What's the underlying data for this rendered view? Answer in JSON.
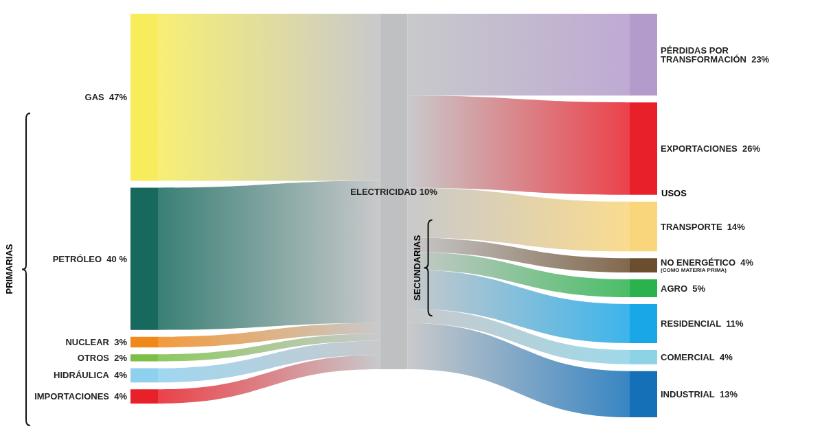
{
  "chart_data": {
    "type": "other",
    "categories": [
      "GAS",
      "PETRÓLEO",
      "NUCLEAR",
      "OTROS",
      "HIDRÁULICA",
      "IMPORTACIONES",
      "PÉRDIDAS POR TRANSFORMACIÓN",
      "EXPORTACIONES",
      "TRANSPORTE",
      "NO ENERGÉTICO",
      "AGRO",
      "RESIDENCIAL",
      "COMERCIAL",
      "INDUSTRIAL"
    ],
    "series": [
      {
        "name": "PRIMARIAS",
        "values": [
          47,
          40,
          3,
          2,
          4,
          4,
          null,
          null,
          null,
          null,
          null,
          null,
          null,
          null
        ],
        "value_labels": [
          "47%",
          "40 %",
          "3%",
          "2%",
          "4%",
          "4%",
          null,
          null,
          null,
          null,
          null,
          null,
          null,
          null
        ]
      },
      {
        "values": [
          null,
          null,
          null,
          null,
          null,
          null,
          23,
          26,
          null,
          null,
          null,
          null,
          null,
          null
        ],
        "value_labels": [
          null,
          null,
          null,
          null,
          null,
          null,
          "23%",
          "26%",
          null,
          null,
          null,
          null,
          null,
          null
        ]
      },
      {
        "name": "USOS",
        "values": [
          null,
          null,
          null,
          null,
          null,
          null,
          null,
          null,
          14,
          4,
          5,
          11,
          4,
          13
        ],
        "value_labels": [
          null,
          null,
          null,
          null,
          null,
          null,
          null,
          null,
          "14%",
          "4%",
          "5%",
          "11%",
          "4%",
          "13%"
        ]
      }
    ],
    "colors": [
      "#f6ec5c",
      "#17695d",
      "#f0891c",
      "#7cbf48",
      "#8fd0ef",
      "#e8202a",
      "#b39bcc",
      "#e8202a",
      "#f9d57c",
      "#6b4e2e",
      "#2bb24c",
      "#1aa7e8",
      "#8ed2e6",
      "#1570b8"
    ],
    "annotations": [
      "ELECTRICIDAD 10%",
      "SECUNDARIAS",
      {
        "text": "(COMO MATERIA PRIMA)",
        "x": "NO ENERGÉTICO"
      }
    ]
  }
}
